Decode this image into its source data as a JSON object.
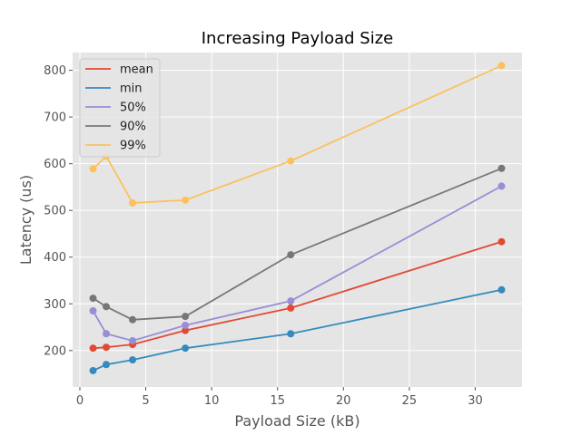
{
  "chart_data": {
    "type": "line",
    "title": "Increasing Payload Size",
    "xlabel": "Payload Size (kB)",
    "ylabel": "Latency (us)",
    "x": [
      1,
      2,
      4,
      8,
      16,
      32
    ],
    "xlim": [
      -0.55,
      33.55
    ],
    "ylim": [
      122,
      838
    ],
    "xticks": [
      0,
      5,
      10,
      15,
      20,
      25,
      30
    ],
    "yticks": [
      200,
      300,
      400,
      500,
      600,
      700,
      800
    ],
    "grid": true,
    "legend_position": "top-left",
    "series": [
      {
        "name": "mean",
        "color": "#E24A33",
        "values": [
          205,
          207,
          213,
          243,
          291,
          433
        ]
      },
      {
        "name": "min",
        "color": "#348ABD",
        "values": [
          157,
          170,
          180,
          205,
          236,
          330
        ]
      },
      {
        "name": "50%",
        "color": "#988ED5",
        "values": [
          285,
          236,
          221,
          254,
          306,
          552
        ]
      },
      {
        "name": "90%",
        "color": "#777777",
        "values": [
          312,
          294,
          266,
          273,
          405,
          590
        ]
      },
      {
        "name": "99%",
        "color": "#FBC15E",
        "values": [
          589,
          616,
          516,
          522,
          606,
          810
        ]
      }
    ]
  }
}
